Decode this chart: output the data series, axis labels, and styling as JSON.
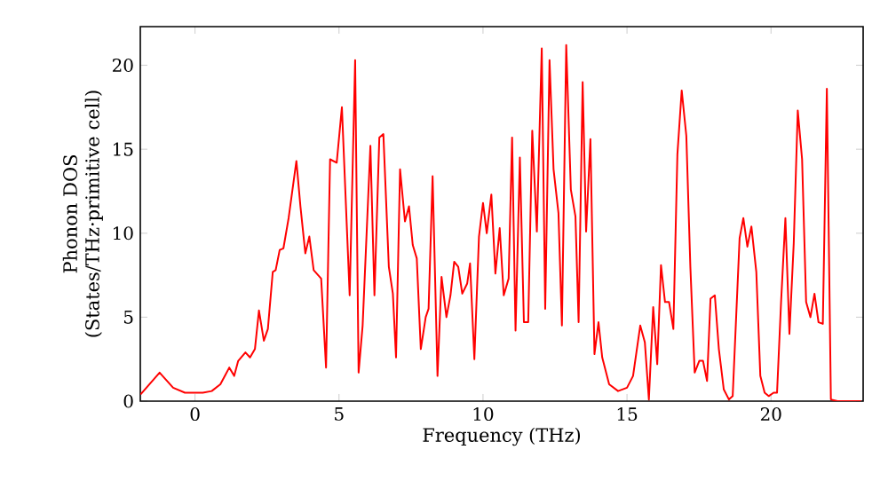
{
  "chart_data": {
    "type": "line",
    "xlabel": "Frequency (THz)",
    "ylabel": "Phonon DOS (States/THz·primitive cell)",
    "xlim": [
      -1.9,
      23.2
    ],
    "ylim": [
      0,
      22.3
    ],
    "xticks": [
      0,
      5,
      10,
      15,
      20
    ],
    "yticks": [
      0,
      5,
      10,
      15,
      20
    ],
    "marker": "none",
    "line_style": "solid",
    "series": [
      {
        "color": "#ff0000",
        "x": [
          -1.89,
          -1.23,
          -0.76,
          -0.35,
          0.27,
          0.58,
          0.88,
          1.19,
          1.36,
          1.5,
          1.75,
          1.91,
          2.08,
          2.22,
          2.39,
          2.53,
          2.7,
          2.8,
          2.94,
          3.07,
          3.25,
          3.52,
          3.66,
          3.83,
          3.97,
          4.12,
          4.38,
          4.55,
          4.69,
          4.92,
          5.1,
          5.37,
          5.56,
          5.68,
          5.82,
          6.09,
          6.23,
          6.4,
          6.54,
          6.73,
          6.87,
          6.98,
          7.12,
          7.29,
          7.43,
          7.56,
          7.7,
          7.84,
          8.01,
          8.11,
          8.25,
          8.42,
          8.56,
          8.73,
          8.87,
          9.0,
          9.14,
          9.28,
          9.45,
          9.55,
          9.7,
          9.86,
          10.0,
          10.13,
          10.29,
          10.43,
          10.58,
          10.72,
          10.89,
          11.01,
          11.13,
          11.28,
          11.42,
          11.57,
          11.71,
          11.87,
          12.04,
          12.16,
          12.31,
          12.45,
          12.62,
          12.74,
          12.89,
          13.05,
          13.21,
          13.32,
          13.46,
          13.58,
          13.73,
          13.87,
          14.01,
          14.14,
          14.38,
          14.69,
          15.0,
          15.21,
          15.46,
          15.62,
          15.76,
          15.91,
          16.05,
          16.18,
          16.32,
          16.46,
          16.61,
          16.75,
          16.9,
          17.06,
          17.2,
          17.35,
          17.51,
          17.64,
          17.78,
          17.9,
          18.05,
          18.19,
          18.36,
          18.54,
          18.67,
          18.91,
          19.04,
          19.18,
          19.32,
          19.49,
          19.63,
          19.78,
          19.92,
          20.09,
          20.21,
          20.35,
          20.5,
          20.64,
          20.79,
          20.93,
          21.08,
          21.22,
          21.37,
          21.51,
          21.65,
          21.8,
          21.94,
          22.08,
          22.31,
          23.13
        ],
        "values": [
          0.4,
          1.7,
          0.8,
          0.5,
          0.5,
          0.6,
          1.0,
          2.0,
          1.5,
          2.4,
          2.9,
          2.6,
          3.1,
          5.4,
          3.6,
          4.3,
          7.7,
          7.8,
          9.0,
          9.1,
          10.9,
          14.3,
          11.6,
          8.8,
          9.8,
          7.8,
          7.3,
          2.0,
          14.4,
          14.2,
          17.5,
          6.3,
          20.3,
          1.7,
          4.5,
          15.2,
          6.3,
          15.7,
          15.9,
          8.0,
          6.4,
          2.6,
          13.8,
          10.7,
          11.6,
          9.3,
          8.5,
          3.1,
          5.0,
          5.5,
          13.4,
          1.5,
          7.4,
          5.0,
          6.3,
          8.3,
          8.0,
          6.4,
          7.0,
          8.2,
          2.5,
          9.8,
          11.8,
          10.0,
          12.3,
          7.6,
          10.3,
          6.3,
          7.3,
          15.7,
          4.2,
          14.5,
          4.7,
          4.7,
          16.1,
          10.1,
          21.0,
          5.5,
          20.3,
          13.8,
          11.2,
          4.5,
          21.2,
          12.6,
          11.0,
          4.7,
          19.0,
          10.1,
          15.6,
          2.8,
          4.7,
          2.6,
          1.0,
          0.6,
          0.8,
          1.5,
          4.5,
          3.5,
          0.1,
          5.6,
          2.2,
          8.1,
          5.9,
          5.9,
          4.3,
          14.7,
          18.5,
          15.8,
          8.0,
          1.7,
          2.4,
          2.4,
          1.2,
          6.1,
          6.3,
          3.1,
          0.7,
          0.1,
          0.3,
          9.7,
          10.9,
          9.2,
          10.4,
          7.7,
          1.5,
          0.5,
          0.3,
          0.5,
          0.5,
          5.9,
          10.9,
          4.0,
          9.4,
          17.3,
          14.4,
          5.9,
          5.0,
          6.4,
          4.7,
          4.6,
          18.6,
          0.1,
          0,
          0
        ]
      }
    ]
  }
}
